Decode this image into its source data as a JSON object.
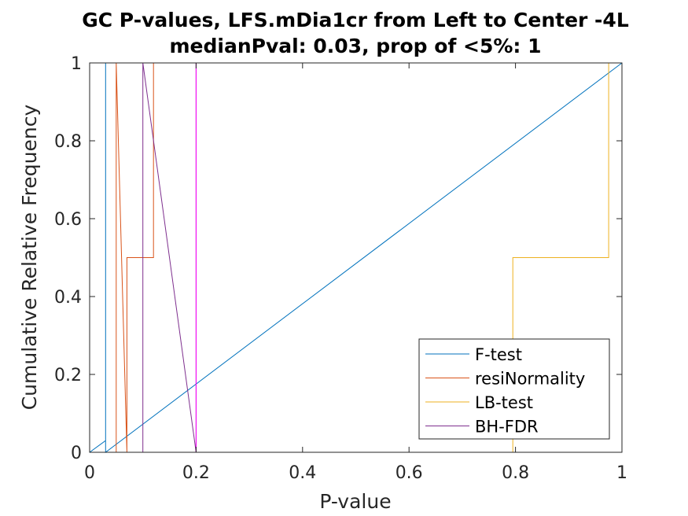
{
  "chart_data": {
    "type": "line",
    "title": [
      "GC P-values, LFS.mDia1cr from Left to Center -4L",
      "medianPval: 0.03, prop of <5%: 1"
    ],
    "xlabel": "P-value",
    "ylabel": "Cumulative Relative Frequency",
    "xlim": [
      0,
      1
    ],
    "ylim": [
      0,
      1
    ],
    "xticks": [
      0,
      0.2,
      0.4,
      0.6,
      0.8,
      1
    ],
    "xtick_labels": [
      "0",
      "0.2",
      "0.4",
      "0.6",
      "0.8",
      "1"
    ],
    "yticks": [
      0,
      0.2,
      0.4,
      0.6,
      0.8,
      1
    ],
    "ytick_labels": [
      "0",
      "0.2",
      "0.4",
      "0.6",
      "0.8",
      "1"
    ],
    "grid": false,
    "legend_position": "bottom-right",
    "series": [
      {
        "name": "F-test",
        "color": "#0072BD",
        "points": [
          [
            0,
            0
          ],
          [
            0.03,
            0.03
          ],
          [
            0.03,
            1
          ],
          [
            0.03,
            0
          ],
          [
            1,
            1
          ]
        ]
      },
      {
        "name": "resiNormality",
        "color": "#D95319",
        "points": [
          [
            0.05,
            0
          ],
          [
            0.05,
            1
          ],
          [
            0.07,
            0
          ],
          [
            0.07,
            0.5
          ],
          [
            0.12,
            0.5
          ],
          [
            0.12,
            1
          ]
        ]
      },
      {
        "name": "LB-test",
        "color": "#EDB120",
        "points": [
          [
            0.795,
            0
          ],
          [
            0.795,
            0.5
          ],
          [
            0.975,
            0.5
          ],
          [
            0.975,
            1
          ]
        ]
      },
      {
        "name": "BH-FDR",
        "color": "#7E2F8E",
        "points": [
          [
            0.1,
            0
          ],
          [
            0.1,
            1
          ],
          [
            0.2,
            0
          ],
          [
            0.2,
            1
          ]
        ]
      }
    ],
    "extra_line_colors": [
      "#FF00FF"
    ]
  }
}
